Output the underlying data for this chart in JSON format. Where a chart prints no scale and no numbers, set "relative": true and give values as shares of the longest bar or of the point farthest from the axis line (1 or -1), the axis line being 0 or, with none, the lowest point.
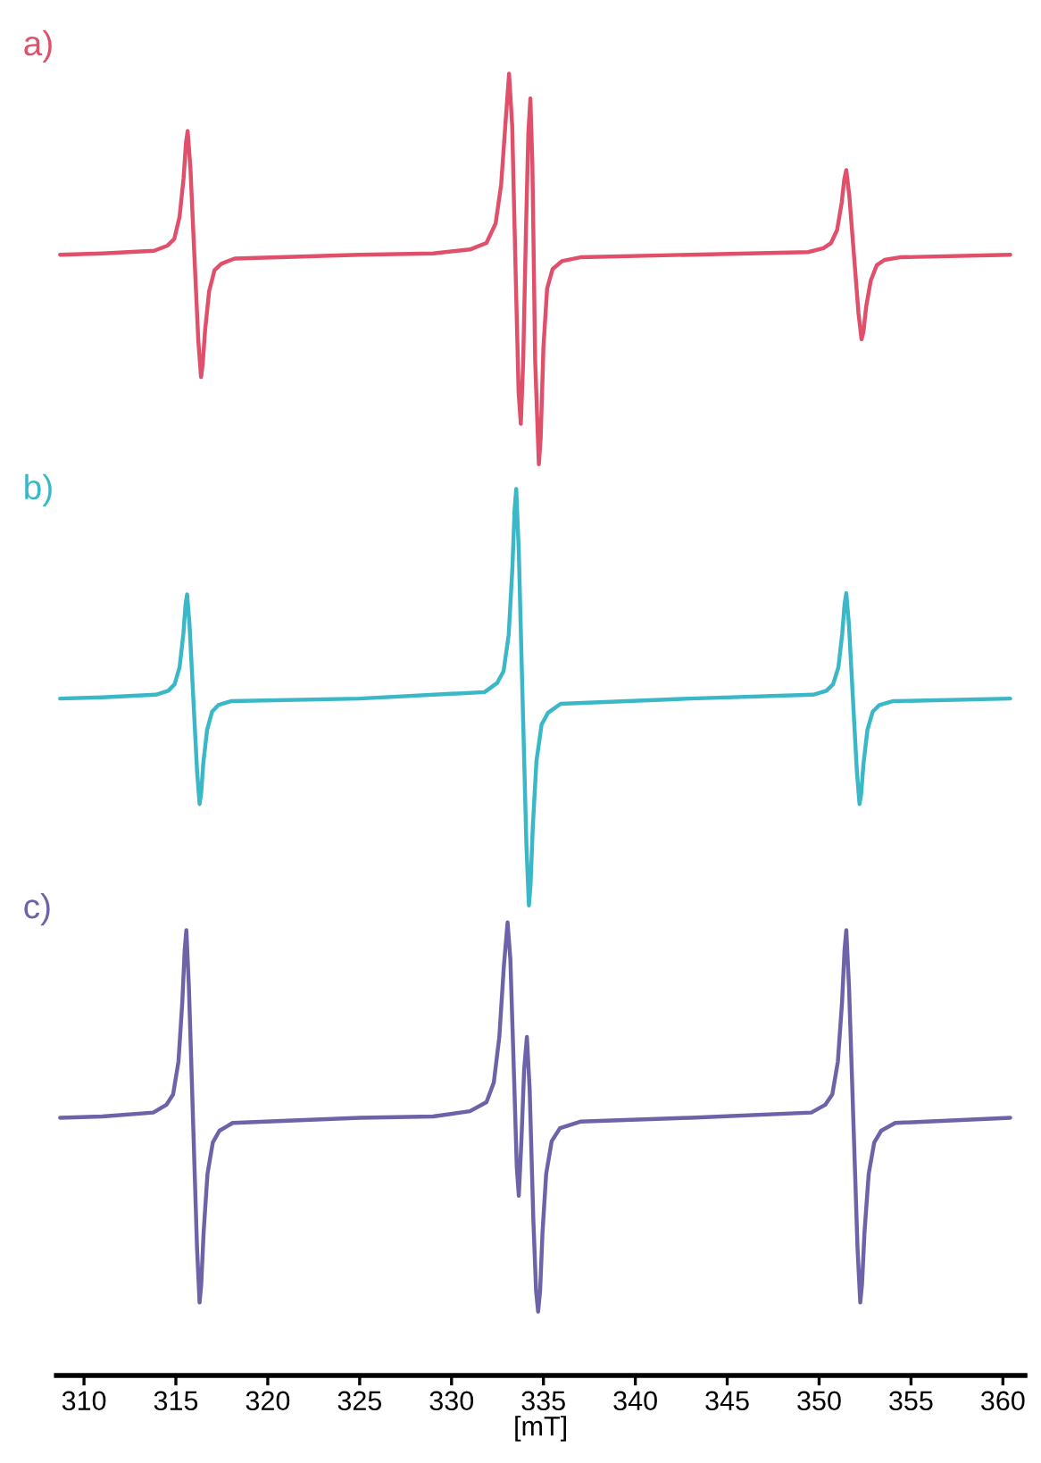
{
  "chart_data": {
    "type": "line",
    "relative": true,
    "xlim": [
      308.5,
      361.2
    ],
    "xticks": [
      310,
      315,
      320,
      325,
      330,
      335,
      340,
      345,
      350,
      355,
      360
    ],
    "xlabel": "[mT]",
    "series": [
      {
        "name": "a)",
        "color": "#e0506a",
        "x": [
          308.7,
          311,
          313.815,
          314.545,
          314.91,
          315.2,
          315.42,
          315.55,
          315.64,
          315.79,
          316.005,
          316.22,
          316.37,
          316.46,
          316.59,
          316.81,
          317.1,
          317.47,
          318.2,
          325,
          329,
          331.0,
          331.9,
          332.4,
          332.7,
          332.95,
          333.13,
          333.3,
          333.5,
          333.65,
          333.77,
          333.9,
          334.05,
          334.18,
          334.29,
          334.4,
          334.55,
          334.75,
          334.85,
          335.0,
          335.2,
          335.5,
          336.0,
          337,
          343,
          349.4,
          350.235,
          350.65,
          350.98,
          351.23,
          351.37,
          351.48,
          351.646,
          351.895,
          352.144,
          352.31,
          352.414,
          352.56,
          352.81,
          353.14,
          353.555,
          354.39,
          360.4
        ],
        "values": [
          0.861,
          0.862,
          0.864,
          0.868,
          0.873,
          0.89,
          0.92,
          0.947,
          0.956,
          0.928,
          0.861,
          0.795,
          0.767,
          0.777,
          0.803,
          0.833,
          0.849,
          0.854,
          0.858,
          0.861,
          0.862,
          0.865,
          0.87,
          0.885,
          0.915,
          0.965,
          1.0,
          0.96,
          0.84,
          0.755,
          0.731,
          0.78,
          0.88,
          0.955,
          0.981,
          0.93,
          0.78,
          0.7,
          0.72,
          0.79,
          0.835,
          0.85,
          0.856,
          0.859,
          0.861,
          0.863,
          0.866,
          0.87,
          0.88,
          0.901,
          0.919,
          0.926,
          0.906,
          0.861,
          0.816,
          0.796,
          0.802,
          0.821,
          0.841,
          0.853,
          0.857,
          0.859,
          0.861
        ]
      },
      {
        "name": "b)",
        "color": "#3bb8c8",
        "x": [
          308.7,
          311,
          313.91,
          314.59,
          314.93,
          315.2,
          315.41,
          315.525,
          315.61,
          315.746,
          315.95,
          316.154,
          316.29,
          316.375,
          316.49,
          316.7,
          316.97,
          317.31,
          317.99,
          325,
          331.8,
          332.485,
          332.83,
          333.11,
          333.31,
          333.43,
          333.52,
          333.66,
          333.865,
          334.07,
          334.21,
          334.3,
          334.42,
          334.62,
          334.9,
          335.245,
          335.935,
          343,
          349.68,
          350.4,
          350.76,
          351.05,
          351.26,
          351.39,
          351.48,
          351.624,
          351.84,
          352.056,
          352.2,
          352.29,
          352.416,
          352.63,
          352.92,
          353.28,
          354.0,
          360.4
        ],
        "values": [
          0.52,
          0.521,
          0.523,
          0.526,
          0.531,
          0.544,
          0.57,
          0.592,
          0.6,
          0.576,
          0.52,
          0.464,
          0.439,
          0.447,
          0.47,
          0.496,
          0.51,
          0.515,
          0.518,
          0.52,
          0.525,
          0.532,
          0.541,
          0.569,
          0.62,
          0.665,
          0.681,
          0.633,
          0.52,
          0.409,
          0.361,
          0.377,
          0.421,
          0.472,
          0.5,
          0.509,
          0.516,
          0.52,
          0.523,
          0.526,
          0.531,
          0.544,
          0.57,
          0.593,
          0.601,
          0.577,
          0.52,
          0.464,
          0.439,
          0.447,
          0.47,
          0.496,
          0.51,
          0.515,
          0.518,
          0.52
        ]
      },
      {
        "name": "c)",
        "color": "#6c63a8",
        "x": [
          308.7,
          311,
          313.77,
          314.49,
          314.85,
          315.14,
          315.35,
          315.48,
          315.57,
          315.71,
          315.93,
          316.15,
          316.29,
          316.38,
          316.51,
          316.72,
          317.01,
          317.37,
          318.09,
          325,
          329,
          331.0,
          331.9,
          332.3,
          332.6,
          332.85,
          333.05,
          333.2,
          333.4,
          333.55,
          333.66,
          333.8,
          333.95,
          334.1,
          334.25,
          334.45,
          334.6,
          334.71,
          334.82,
          334.95,
          335.15,
          335.45,
          335.9,
          337,
          343,
          349.58,
          350.34,
          350.72,
          351.02,
          351.25,
          351.385,
          351.48,
          351.63,
          351.86,
          352.09,
          352.24,
          352.335,
          352.47,
          352.7,
          353.0,
          353.38,
          354.14,
          360.4
        ],
        "values": [
          0.198,
          0.199,
          0.202,
          0.208,
          0.216,
          0.241,
          0.287,
          0.327,
          0.342,
          0.298,
          0.198,
          0.098,
          0.056,
          0.07,
          0.11,
          0.155,
          0.179,
          0.188,
          0.194,
          0.198,
          0.199,
          0.203,
          0.21,
          0.225,
          0.26,
          0.315,
          0.348,
          0.32,
          0.23,
          0.16,
          0.138,
          0.18,
          0.235,
          0.26,
          0.22,
          0.12,
          0.065,
          0.049,
          0.065,
          0.11,
          0.155,
          0.18,
          0.19,
          0.195,
          0.198,
          0.202,
          0.208,
          0.216,
          0.241,
          0.287,
          0.327,
          0.342,
          0.298,
          0.198,
          0.098,
          0.056,
          0.07,
          0.11,
          0.155,
          0.179,
          0.188,
          0.194,
          0.198
        ]
      }
    ]
  }
}
